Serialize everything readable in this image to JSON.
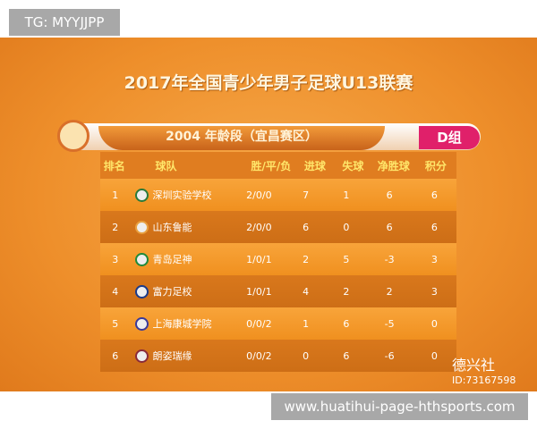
{
  "tag": "TG: MYYJJPP",
  "title": "2017年全国青少年男子足球U13联赛",
  "subtitle": "2004  年龄段（宜昌赛区）",
  "group": "D组",
  "columns": [
    "排名",
    "球队",
    "胜/平/负",
    "进球",
    "失球",
    "净胜球",
    "积分"
  ],
  "rows": [
    {
      "rank": "1",
      "team": "深圳实验学校",
      "wdl": "2/0/0",
      "gf": "7",
      "ga": "1",
      "gd": "6",
      "pts": "6",
      "logo_color": "#2a7a3a"
    },
    {
      "rank": "2",
      "team": "山东鲁能",
      "wdl": "2/0/0",
      "gf": "6",
      "ga": "0",
      "gd": "6",
      "pts": "6",
      "logo_color": "#e8a040"
    },
    {
      "rank": "3",
      "team": "青岛足神",
      "wdl": "1/0/1",
      "gf": "2",
      "ga": "5",
      "gd": "-3",
      "pts": "3",
      "logo_color": "#1f8a3a"
    },
    {
      "rank": "4",
      "team": "富力足校",
      "wdl": "1/0/1",
      "gf": "4",
      "ga": "2",
      "gd": "2",
      "pts": "3",
      "logo_color": "#1a3a8a"
    },
    {
      "rank": "5",
      "team": "上海康城学院",
      "wdl": "0/0/2",
      "gf": "1",
      "ga": "6",
      "gd": "-5",
      "pts": "0",
      "logo_color": "#3a3a9a"
    },
    {
      "rank": "6",
      "team": "朗姿瑞缘",
      "wdl": "0/0/2",
      "gf": "0",
      "ga": "6",
      "gd": "-6",
      "pts": "0",
      "logo_color": "#8a2a3a"
    }
  ],
  "watermark": {
    "name": "德兴社",
    "id": "ID:73167598"
  },
  "url": "www.huatihui-page-hthsports.com"
}
